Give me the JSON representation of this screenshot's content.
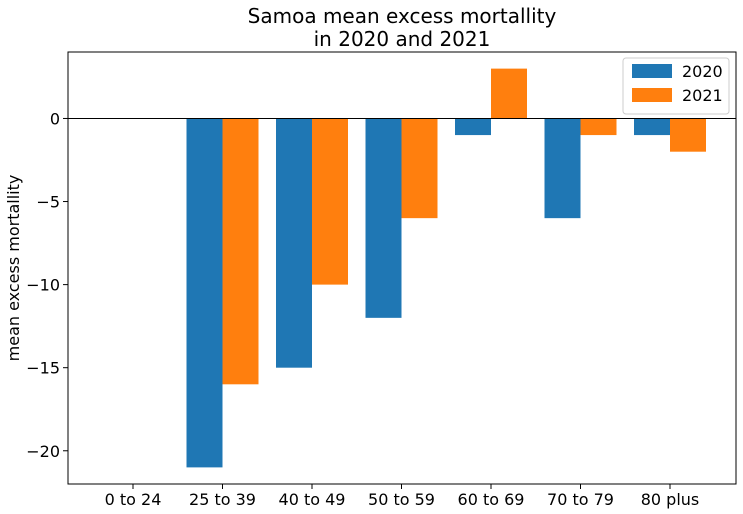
{
  "chart_data": {
    "type": "bar",
    "title_lines": [
      "Samoa mean excess mortallity",
      "in 2020 and 2021"
    ],
    "xlabel": "",
    "ylabel": "mean excess mortallity",
    "categories": [
      "0 to 24",
      "25 to 39",
      "40 to 49",
      "50 to 59",
      "60 to 69",
      "70 to 79",
      "80 plus"
    ],
    "series": [
      {
        "name": "2020",
        "color": "#1f77b4",
        "values": [
          0,
          -21,
          -15,
          -12,
          -1,
          -6,
          -1
        ]
      },
      {
        "name": "2021",
        "color": "#ff7f0e",
        "values": [
          0,
          -16,
          -10,
          -6,
          3,
          -1,
          -2
        ]
      }
    ],
    "ylim": [
      -22,
      4
    ],
    "yticks": [
      0,
      -5,
      -10,
      -15,
      -20
    ],
    "ytick_labels": [
      "0",
      "−5",
      "−10",
      "−15",
      "−20"
    ],
    "zero_line": true,
    "grid": false,
    "legend_position": "top-right"
  }
}
